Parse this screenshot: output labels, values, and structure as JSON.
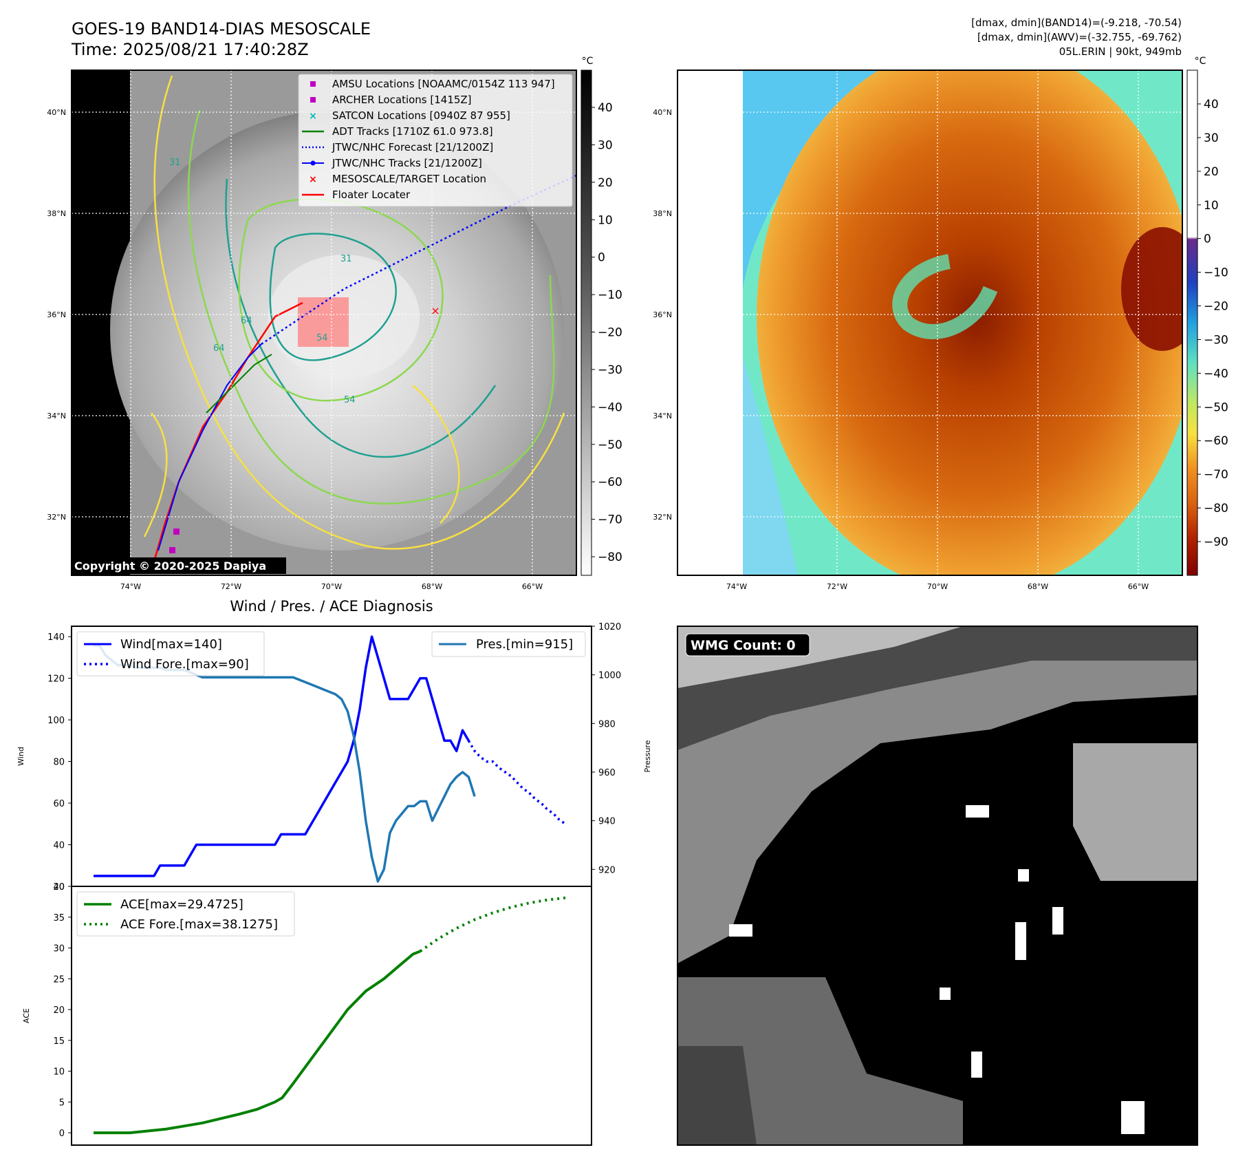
{
  "header": {
    "title_line1": "GOES-19 BAND14-DIAS MESOSCALE",
    "title_line2": "Time: 2025/08/21 17:40:28Z",
    "stats_line1": "[dmax, dmin](BAND14)=(-9.218, -70.54)",
    "stats_line2": "[dmax, dmin](AWV)=(-32.755, -69.762)",
    "stats_line3": "05L.ERIN | 90kt, 949mb"
  },
  "map_axes": {
    "lat_ticks": [
      "40°N",
      "38°N",
      "36°N",
      "34°N",
      "32°N"
    ],
    "lon_ticks": [
      "74°W",
      "72°W",
      "70°W",
      "68°W",
      "66°W"
    ]
  },
  "ir_panel": {
    "colorbar_unit": "°C",
    "colorbar_ticks": [
      "40",
      "30",
      "20",
      "10",
      "0",
      "−10",
      "−20",
      "−30",
      "−40",
      "−50",
      "−60",
      "−70",
      "−80"
    ],
    "copyright": "Copyright © 2020-2025 Dapiya",
    "legend": [
      {
        "label": "AMSU Locations [NOAAMC/0154Z 113 947]",
        "color": "#c000c0",
        "marker": "square"
      },
      {
        "label": "ARCHER Locations [1415Z]",
        "color": "#c000c0",
        "marker": "square"
      },
      {
        "label": "SATCON Locations [0940Z 87 955]",
        "color": "#00b8b8",
        "marker": "x"
      },
      {
        "label": "ADT Tracks [1710Z 61.0 973.8]",
        "color": "#008000",
        "marker": "line"
      },
      {
        "label": "JTWC/NHC Forecast [21/1200Z]",
        "color": "#0000ff",
        "marker": "dotted"
      },
      {
        "label": "JTWC/NHC Tracks [21/1200Z]",
        "color": "#0000ff",
        "marker": "line-dot"
      },
      {
        "label": "MESOSCALE/TARGET Location",
        "color": "#ff0000",
        "marker": "x"
      },
      {
        "label": "Floater Locater",
        "color": "#ff0000",
        "marker": "line"
      }
    ],
    "contour_labels": [
      "31",
      "31",
      "64",
      "64",
      "54",
      "54"
    ]
  },
  "awv_panel": {
    "colorbar_unit": "°C",
    "colorbar_ticks": [
      "40",
      "30",
      "20",
      "10",
      "0",
      "−10",
      "−20",
      "−30",
      "−40",
      "−50",
      "−60",
      "−70",
      "−80",
      "−90"
    ]
  },
  "wmg_panel": {
    "label": "WMG Count: 0"
  },
  "chart_data": [
    {
      "type": "line",
      "title": "Wind / Pres. / ACE Diagnosis",
      "ylabel": "Wind",
      "y2label": "Pressure",
      "ylim": [
        20,
        145
      ],
      "y2lim": [
        913,
        1020
      ],
      "yticks": [
        "140",
        "120",
        "100",
        "80",
        "60",
        "40",
        "20"
      ],
      "y2ticks": [
        "1020",
        "1000",
        "980",
        "960",
        "940",
        "920"
      ],
      "legend_left": [
        "Wind[max=140]",
        "Wind Fore.[max=90]"
      ],
      "legend_right": [
        "Pres.[min=915]"
      ],
      "series": [
        {
          "name": "Wind[max=140]",
          "color": "#0000ff",
          "style": "solid",
          "x": [
            0,
            1,
            2,
            3,
            4,
            5,
            6,
            7,
            8,
            9,
            10,
            11,
            12,
            13,
            14,
            15,
            16,
            17,
            18,
            19,
            20,
            21,
            22,
            23,
            24,
            25,
            26,
            27,
            28,
            29,
            30,
            31,
            32,
            33,
            34,
            35,
            36,
            37,
            38,
            39,
            40,
            41,
            42,
            43,
            44,
            45,
            46,
            47,
            48,
            49,
            50,
            51,
            52,
            53,
            54,
            55,
            56,
            57,
            58,
            59,
            60,
            61,
            62
          ],
          "values": [
            25,
            25,
            25,
            25,
            25,
            25,
            25,
            25,
            25,
            25,
            25,
            30,
            30,
            30,
            30,
            30,
            35,
            40,
            40,
            40,
            40,
            40,
            40,
            40,
            40,
            40,
            40,
            40,
            40,
            40,
            40,
            45,
            45,
            45,
            45,
            45,
            50,
            55,
            60,
            65,
            70,
            75,
            80,
            90,
            105,
            125,
            140,
            130,
            120,
            110,
            110,
            110,
            110,
            115,
            120,
            120,
            110,
            100,
            90,
            90,
            85,
            95,
            90
          ]
        },
        {
          "name": "Wind Fore.[max=90]",
          "color": "#0000ff",
          "style": "dotted",
          "x": [
            62,
            63,
            64,
            65,
            66,
            67,
            68,
            69,
            70,
            71,
            72,
            73,
            74,
            75,
            76,
            77,
            78
          ],
          "values": [
            90,
            85,
            82,
            80,
            80,
            77,
            75,
            73,
            70,
            67,
            65,
            62,
            60,
            57,
            55,
            52,
            50
          ]
        },
        {
          "name": "Pres.[min=915]",
          "color": "#1f77b4",
          "style": "solid",
          "x": [
            0,
            1,
            2,
            3,
            4,
            5,
            6,
            7,
            8,
            9,
            10,
            11,
            12,
            13,
            14,
            15,
            16,
            17,
            18,
            19,
            20,
            21,
            22,
            23,
            24,
            25,
            26,
            27,
            28,
            29,
            30,
            31,
            32,
            33,
            34,
            35,
            36,
            37,
            38,
            39,
            40,
            41,
            42,
            43,
            44,
            45,
            46,
            47,
            48,
            49,
            50,
            51,
            52,
            53,
            54,
            55,
            56,
            57,
            58,
            59,
            60,
            61,
            62,
            63
          ],
          "values": [
            1012,
            1012,
            1008,
            1006,
            1004,
            1004,
            1004,
            1003,
            1003,
            1003,
            1003,
            1003,
            1002,
            1002,
            1002,
            1002,
            1001,
            1000,
            999,
            999,
            999,
            999,
            999,
            999,
            999,
            999,
            999,
            999,
            999,
            999,
            999,
            999,
            999,
            999,
            998,
            997,
            996,
            995,
            994,
            993,
            992,
            990,
            985,
            975,
            960,
            940,
            925,
            915,
            920,
            935,
            940,
            943,
            946,
            946,
            948,
            948,
            940,
            945,
            950,
            955,
            958,
            960,
            958,
            950
          ]
        }
      ]
    },
    {
      "type": "line",
      "ylabel": "ACE",
      "ylim": [
        -2,
        40
      ],
      "yticks": [
        "40",
        "35",
        "30",
        "25",
        "20",
        "15",
        "10",
        "5",
        "0"
      ],
      "legend": [
        "ACE[max=29.4725]",
        "ACE Fore.[max=38.1275]"
      ],
      "series": [
        {
          "name": "ACE[max=29.4725]",
          "color": "#008000",
          "style": "solid",
          "x": [
            0,
            10,
            20,
            30,
            40,
            45,
            50,
            52,
            55,
            60,
            65,
            70,
            75,
            80,
            85,
            88,
            90
          ],
          "values": [
            0,
            0,
            0.6,
            1.6,
            3.0,
            3.8,
            5.0,
            5.7,
            8.0,
            12,
            16,
            20,
            23,
            25,
            27.5,
            29,
            29.47
          ]
        },
        {
          "name": "ACE Fore.[max=38.1275]",
          "color": "#008000",
          "style": "dotted",
          "x": [
            90,
            95,
            100,
            105,
            110,
            115,
            120,
            125,
            130
          ],
          "values": [
            29.47,
            31.5,
            33.2,
            34.6,
            35.7,
            36.6,
            37.3,
            37.8,
            38.13
          ]
        }
      ]
    }
  ]
}
